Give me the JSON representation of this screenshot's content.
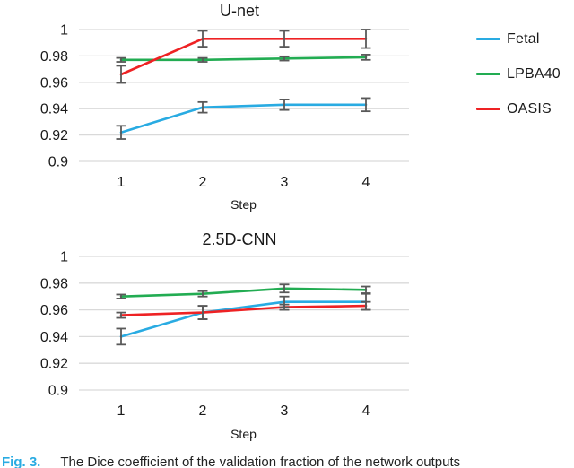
{
  "colors": {
    "fetal": "#29ABE2",
    "lpba40": "#22AC52",
    "oasis": "#EE2224",
    "error_bar": "#595959",
    "gridline": "#D9D9D9",
    "text": "#1a1a1a",
    "caption_fig": "#29ABE2"
  },
  "legend": {
    "items": [
      {
        "label": "Fetal",
        "color": "#29ABE2"
      },
      {
        "label": "LPBA40",
        "color": "#22AC52"
      },
      {
        "label": "OASIS",
        "color": "#EE2224"
      }
    ]
  },
  "chart_data": [
    {
      "type": "line",
      "title": "U-net",
      "x": [
        1,
        2,
        3,
        4
      ],
      "xlabel": "Step",
      "ylim": [
        0.9,
        1.0
      ],
      "grid": true,
      "legend_position": "right",
      "yticks": [
        {
          "v": 1.0,
          "label": "1"
        },
        {
          "v": 0.98,
          "label": "0.98"
        },
        {
          "v": 0.96,
          "label": "0.96"
        },
        {
          "v": 0.94,
          "label": "0.94"
        },
        {
          "v": 0.92,
          "label": "0.92"
        },
        {
          "v": 0.9,
          "label": "0.9"
        }
      ],
      "series": [
        {
          "name": "Fetal",
          "color": "#29ABE2",
          "values": [
            0.922,
            0.941,
            0.943,
            0.943
          ],
          "errors": [
            0.005,
            0.004,
            0.004,
            0.005
          ]
        },
        {
          "name": "LPBA40",
          "color": "#22AC52",
          "values": [
            0.977,
            0.977,
            0.978,
            0.979
          ],
          "errors": [
            0.0015,
            0.0015,
            0.0015,
            0.002
          ]
        },
        {
          "name": "OASIS",
          "color": "#EE2224",
          "values": [
            0.966,
            0.993,
            0.993,
            0.993
          ],
          "errors": [
            0.0065,
            0.006,
            0.006,
            0.007
          ]
        }
      ]
    },
    {
      "type": "line",
      "title": "2.5D-CNN",
      "x": [
        1,
        2,
        3,
        4
      ],
      "xlabel": "Step",
      "ylim": [
        0.9,
        1.0
      ],
      "grid": true,
      "legend_position": "none",
      "yticks": [
        {
          "v": 1.0,
          "label": "1"
        },
        {
          "v": 0.98,
          "label": "0.98"
        },
        {
          "v": 0.96,
          "label": "0.96"
        },
        {
          "v": 0.94,
          "label": "0.94"
        },
        {
          "v": 0.92,
          "label": "0.92"
        },
        {
          "v": 0.9,
          "label": "0.9"
        }
      ],
      "series": [
        {
          "name": "Fetal",
          "color": "#29ABE2",
          "values": [
            0.94,
            0.958,
            0.966,
            0.966
          ],
          "errors": [
            0.006,
            0.005,
            0.004,
            0.006
          ]
        },
        {
          "name": "LPBA40",
          "color": "#22AC52",
          "values": [
            0.97,
            0.972,
            0.976,
            0.975
          ],
          "errors": [
            0.0015,
            0.002,
            0.003,
            0.0025
          ]
        },
        {
          "name": "OASIS",
          "color": "#EE2224",
          "values": [
            0.956,
            0.958,
            0.962,
            0.963
          ],
          "errors": [
            0.002,
            0.005,
            0.002,
            0.003
          ]
        }
      ]
    }
  ],
  "caption": {
    "fig_label": "Fig. 3.",
    "text": "The Dice coefficient of the validation fraction of the network outputs"
  }
}
